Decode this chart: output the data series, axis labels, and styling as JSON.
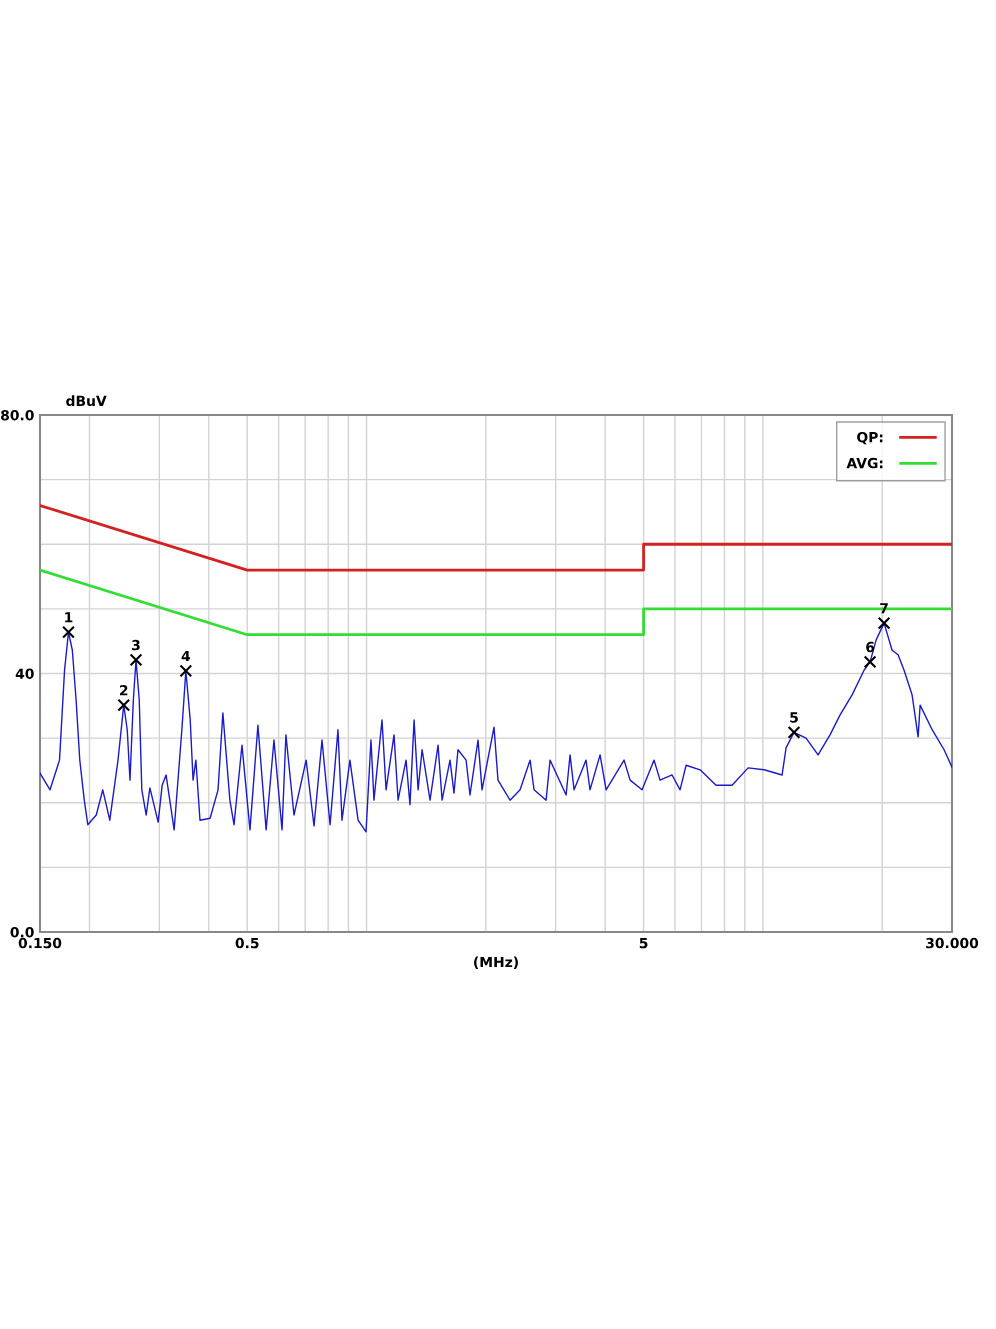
{
  "chart_data": {
    "type": "line",
    "xlabel": "(MHz)",
    "ylabel": "dBuV",
    "log": "x",
    "xlim": [
      0.15,
      30
    ],
    "ylim": [
      0,
      80
    ],
    "xticks": [
      {
        "value": 0.15,
        "label": "0.150"
      },
      {
        "value": 0.2,
        "label": null
      },
      {
        "value": 0.3,
        "label": null
      },
      {
        "value": 0.4,
        "label": null
      },
      0.5,
      {
        "value": 0.6,
        "label": null
      },
      {
        "value": 0.7,
        "label": null
      },
      {
        "value": 0.8,
        "label": null
      },
      {
        "value": 0.9,
        "label": null
      },
      {
        "value": 1,
        "label": null
      },
      {
        "value": 2,
        "label": null
      },
      {
        "value": 3,
        "label": null
      },
      {
        "value": 4,
        "label": null
      },
      5,
      {
        "value": 6,
        "label": null
      },
      {
        "value": 7,
        "label": null
      },
      {
        "value": 8,
        "label": null
      },
      {
        "value": 9,
        "label": null
      },
      {
        "value": 10,
        "label": null
      },
      {
        "value": 20,
        "label": null
      },
      {
        "value": 30,
        "label": "30.000"
      }
    ],
    "yticks": [
      {
        "value": 0,
        "label": "0.0"
      },
      {
        "value": 10,
        "label": null
      },
      {
        "value": 20,
        "label": null
      },
      {
        "value": 30,
        "label": null
      },
      40,
      {
        "value": 50,
        "label": null
      },
      {
        "value": 60,
        "label": null
      },
      {
        "value": 70,
        "label": null
      },
      {
        "value": 80,
        "label": "80.0"
      }
    ],
    "grid": true,
    "legend": "top right",
    "series": [
      {
        "name": "QP:",
        "color": "#d42020",
        "type": "step",
        "x": [
          0.15,
          0.5,
          5,
          5,
          30
        ],
        "values": [
          66,
          56,
          56,
          60,
          60
        ]
      },
      {
        "name": "AVG:",
        "color": "#33dd33",
        "type": "step",
        "x": [
          0.15,
          0.5,
          5,
          5,
          30
        ],
        "values": [
          56,
          46,
          46,
          50,
          50
        ]
      },
      {
        "color": "#1a1ac8",
        "x": [
          0.15,
          0.159,
          0.168,
          0.173,
          0.177,
          0.181,
          0.185,
          0.189,
          0.194,
          0.198,
          0.208,
          0.216,
          0.225,
          0.236,
          0.244,
          0.249,
          0.253,
          0.258,
          0.262,
          0.267,
          0.271,
          0.278,
          0.284,
          0.298,
          0.305,
          0.312,
          0.327,
          0.342,
          0.35,
          0.359,
          0.365,
          0.371,
          0.38,
          0.403,
          0.422,
          0.434,
          0.452,
          0.463,
          0.485,
          0.508,
          0.532,
          0.558,
          0.584,
          0.612,
          0.626,
          0.656,
          0.704,
          0.737,
          0.772,
          0.809,
          0.847,
          0.867,
          0.908,
          0.952,
          0.997,
          1.026,
          1.044,
          1.094,
          1.12,
          1.173,
          1.201,
          1.258,
          1.287,
          1.318,
          1.349,
          1.381,
          1.446,
          1.515,
          1.551,
          1.624,
          1.662,
          1.701,
          1.783,
          1.824,
          1.911,
          1.956,
          2.097,
          2.146,
          2.302,
          2.44,
          2.586,
          2.646,
          2.838,
          2.904,
          3.188,
          3.262,
          3.339,
          3.579,
          3.663,
          3.883,
          4.022,
          4.464,
          4.623,
          4.956,
          5.313,
          5.502,
          5.9,
          6.18,
          6.401,
          6.944,
          7.617,
          8.361,
          9.176,
          10.07,
          11.18,
          11.44,
          11.98,
          12.85,
          13.78,
          14.77,
          15.66,
          16.79,
          18.0,
          18.64,
          19.31,
          20.22,
          21.18,
          21.93,
          22.71,
          23.79,
          24.64,
          24.93,
          26.73,
          28.65,
          30.0
        ],
        "values": [
          24.6,
          22.0,
          26.6,
          40.5,
          46.4,
          43.6,
          35.9,
          26.6,
          20.4,
          16.6,
          18.1,
          22.0,
          17.3,
          26.6,
          35.1,
          31.3,
          23.5,
          35.9,
          42.1,
          35.9,
          22.0,
          18.1,
          22.3,
          17.0,
          22.7,
          24.3,
          15.8,
          31.3,
          40.4,
          32.8,
          23.5,
          26.6,
          17.3,
          17.6,
          22.0,
          33.9,
          20.4,
          16.6,
          28.9,
          15.8,
          32.0,
          15.8,
          29.7,
          15.8,
          30.5,
          18.1,
          26.6,
          16.4,
          29.7,
          16.6,
          31.3,
          17.3,
          26.6,
          17.3,
          15.5,
          29.7,
          20.4,
          32.8,
          22.0,
          30.5,
          20.4,
          26.6,
          19.7,
          32.8,
          22.0,
          28.2,
          20.4,
          28.9,
          20.4,
          26.6,
          21.5,
          28.2,
          26.6,
          21.2,
          29.7,
          22.0,
          31.7,
          23.5,
          20.4,
          22.0,
          26.6,
          22.0,
          20.4,
          26.6,
          21.2,
          27.4,
          22.0,
          26.6,
          22.0,
          27.4,
          22.0,
          26.6,
          23.5,
          22.0,
          26.6,
          23.5,
          24.3,
          22.0,
          25.8,
          25.1,
          22.7,
          22.7,
          25.4,
          25.1,
          24.3,
          28.5,
          30.9,
          30.0,
          27.4,
          30.5,
          33.6,
          36.7,
          40.5,
          41.8,
          45.2,
          47.8,
          43.6,
          42.9,
          40.5,
          36.7,
          30.2,
          35.1,
          31.3,
          28.2,
          25.5
        ]
      },
      {
        "color": "#000000",
        "type": "scatter",
        "marker": "cross",
        "x": [
          0.177,
          0.244,
          0.262,
          0.35,
          11.98,
          18.64,
          20.22
        ],
        "values": [
          46.4,
          35.1,
          42.1,
          40.4,
          30.9,
          41.8,
          47.8
        ]
      }
    ],
    "annotations": [
      {
        "text": "1",
        "x": 0.177,
        "y": 46.4
      },
      {
        "text": "2",
        "x": 0.244,
        "y": 35.1
      },
      {
        "text": "3",
        "x": 0.262,
        "y": 42.1
      },
      {
        "text": "4",
        "x": 0.35,
        "y": 40.4
      },
      {
        "text": "5",
        "x": 11.98,
        "y": 30.9
      },
      {
        "text": "6",
        "x": 18.64,
        "y": 41.8
      },
      {
        "text": "7",
        "x": 20.22,
        "y": 47.8
      }
    ]
  }
}
